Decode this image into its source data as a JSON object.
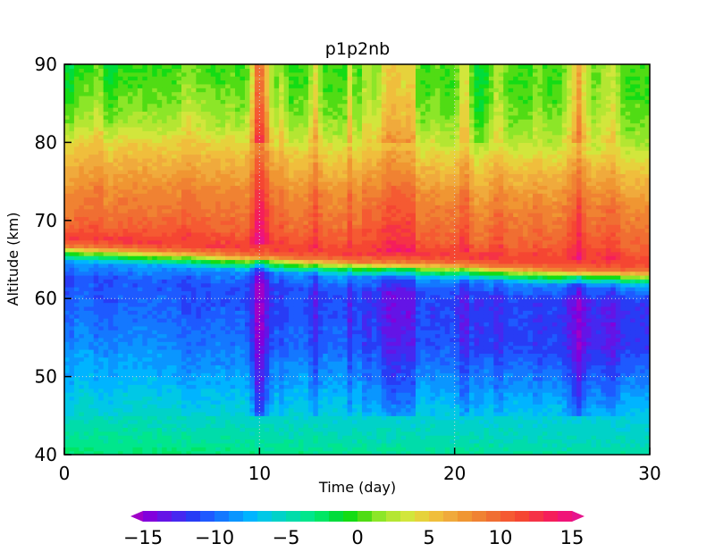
{
  "chart_data": {
    "type": "heatmap",
    "title": "p1p2nb",
    "xlabel": "Time (day)",
    "ylabel": "Altitude (km)",
    "xlim": [
      0,
      30
    ],
    "ylim": [
      40,
      90
    ],
    "x_ticks": [
      0,
      10,
      20,
      30
    ],
    "y_ticks": [
      40,
      50,
      60,
      70,
      80,
      90
    ],
    "grid": "dotted at x=10,20 and y=50,60",
    "colorbar": {
      "placement": "bottom",
      "levels": [
        -16,
        -15,
        -14,
        -13,
        -12,
        -11,
        -10,
        -9,
        -8,
        -7,
        -6,
        -5,
        -4,
        -3,
        -2,
        -1,
        0,
        1,
        2,
        3,
        4,
        5,
        6,
        7,
        8,
        9,
        10,
        11,
        12,
        13,
        14,
        15,
        16
      ],
      "tick_values": [
        -15,
        -10,
        -5,
        0,
        5,
        10,
        15
      ],
      "tick_labels": [
        "−15",
        "−10",
        "−5",
        "0",
        "5",
        "10",
        "15"
      ],
      "colors": [
        "#a000c8",
        "#8200dc",
        "#6414e6",
        "#4628f0",
        "#283cf5",
        "#1e5aff",
        "#1478ff",
        "#0a96ff",
        "#00b4ff",
        "#00c8e6",
        "#00d2c8",
        "#00dcaa",
        "#00e68c",
        "#00e664",
        "#00dc3c",
        "#14dc14",
        "#50dc14",
        "#8ce628",
        "#b4e632",
        "#d2e63c",
        "#e6d23c",
        "#f0be3c",
        "#f0aa3c",
        "#f09632",
        "#f08232",
        "#f06e32",
        "#f55a32",
        "#f54632",
        "#f53246",
        "#f51e5a",
        "#f01478",
        "#e6148c"
      ]
    },
    "profile_by_altitude_km": [
      {
        "alt": 40,
        "value": -2.5
      },
      {
        "alt": 42,
        "value": -3.5
      },
      {
        "alt": 45,
        "value": -5.0
      },
      {
        "alt": 50,
        "value": -7.0
      },
      {
        "alt": 55,
        "value": -8.5
      },
      {
        "alt": 60,
        "value": -10.0
      },
      {
        "alt": 63,
        "value": -10.5
      },
      {
        "alt": 65,
        "value": -8.0
      },
      {
        "alt": 66,
        "value": 0
      },
      {
        "alt": 67,
        "value": 9.0
      },
      {
        "alt": 68,
        "value": 12.0
      },
      {
        "alt": 70,
        "value": 10.0
      },
      {
        "alt": 75,
        "value": 8.0
      },
      {
        "alt": 80,
        "value": 5.0
      },
      {
        "alt": 83,
        "value": 2.5
      },
      {
        "alt": 86,
        "value": 1.0
      },
      {
        "alt": 90,
        "value": 0.0
      }
    ],
    "transition_altitude_km": [
      [
        0,
        67.8
      ],
      [
        5,
        67.2
      ],
      [
        10,
        66.5
      ],
      [
        15,
        65.8
      ],
      [
        20,
        65.5
      ],
      [
        25,
        64.8
      ],
      [
        30,
        64.5
      ]
    ],
    "notes_trend": "negative region deepens toward day 30 near 50–60 km; sharp positive band just above the transition"
  }
}
